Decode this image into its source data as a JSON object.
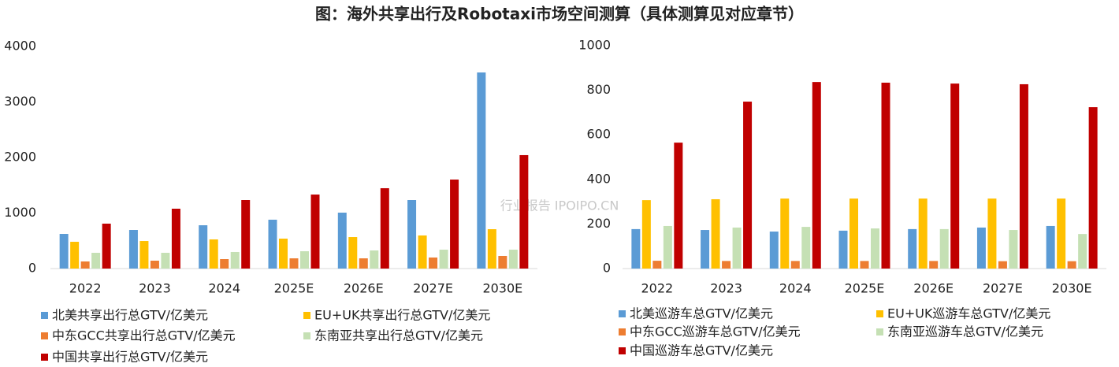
{
  "title": "图：海外共享出行及Robotaxi市场空间测算（具体测算见对应章节）",
  "watermark": "行业报告 IPOIPO.CN",
  "chart_data": [
    {
      "type": "bar",
      "categories": [
        "2022",
        "2023",
        "2024",
        "2025E",
        "2026E",
        "2027E",
        "2030E"
      ],
      "ylim": [
        0,
        4000
      ],
      "yticks": [
        0,
        1000,
        2000,
        3000,
        4000
      ],
      "series": [
        {
          "name": "北美共享出行总GTV/亿美元",
          "color": "#5b9bd5",
          "values": [
            624,
            695,
            780,
            880,
            1007,
            1234,
            3532
          ]
        },
        {
          "name": "EU+UK共享出行总GTV/亿美元",
          "color": "#ffc000",
          "values": [
            482,
            496,
            525,
            539,
            567,
            596,
            709
          ]
        },
        {
          "name": "中东GCC共享出行总GTV/亿美元",
          "color": "#ed7d31",
          "values": [
            128,
            142,
            170,
            184,
            184,
            199,
            227
          ]
        },
        {
          "name": "东南亚共享出行总GTV/亿美元",
          "color": "#c5e0b4",
          "values": [
            284,
            284,
            298,
            312,
            326,
            340,
            340
          ]
        },
        {
          "name": "中国共享出行总GTV/亿美元",
          "color": "#c00000",
          "values": [
            809,
            1078,
            1234,
            1333,
            1447,
            1603,
            2043
          ]
        }
      ]
    },
    {
      "type": "bar",
      "categories": [
        "2022",
        "2023",
        "2024",
        "2025E",
        "2026E",
        "2027E",
        "2030E"
      ],
      "ylim": [
        0,
        1000
      ],
      "yticks": [
        0,
        200,
        400,
        600,
        800,
        1000
      ],
      "series": [
        {
          "name": "北美巡游车总GTV/亿美元",
          "color": "#5b9bd5",
          "values": [
            177,
            173,
            166,
            170,
            177,
            184,
            191
          ]
        },
        {
          "name": "EU+UK巡游车总GTV/亿美元",
          "color": "#ffc000",
          "values": [
            307,
            311,
            314,
            314,
            314,
            314,
            314
          ]
        },
        {
          "name": "中东GCC巡游车总GTV/亿美元",
          "color": "#ed7d31",
          "values": [
            35,
            34,
            34,
            34,
            34,
            33,
            33
          ]
        },
        {
          "name": "东南亚巡游车总GTV/亿美元",
          "color": "#c5e0b4",
          "values": [
            191,
            184,
            187,
            180,
            177,
            173,
            155
          ]
        },
        {
          "name": "中国巡游车总GTV/亿美元",
          "color": "#c00000",
          "values": [
            565,
            749,
            837,
            834,
            830,
            827,
            724
          ]
        }
      ]
    }
  ]
}
